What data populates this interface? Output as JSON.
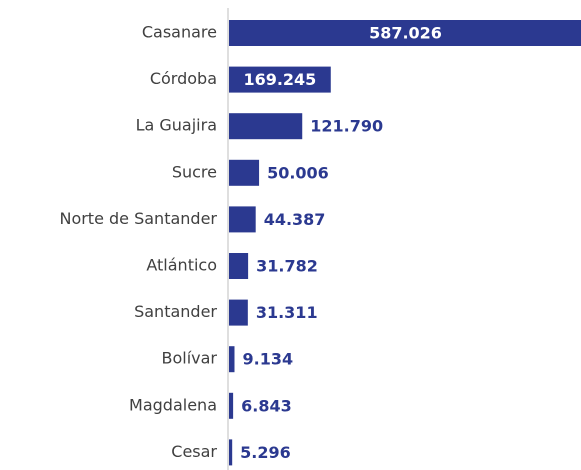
{
  "chart_data": {
    "type": "bar",
    "orientation": "horizontal",
    "categories": [
      "Casanare",
      "Córdoba",
      "La Guajira",
      "Sucre",
      "Norte de Santander",
      "Atlántico",
      "Santander",
      "Bolívar",
      "Magdalena",
      "Cesar"
    ],
    "values": [
      587026,
      169245,
      121790,
      50006,
      44387,
      31782,
      31311,
      9134,
      6843,
      5296
    ],
    "value_labels": [
      "587.026",
      "169.245",
      "121.790",
      "50.006",
      "44.387",
      "31.782",
      "31.311",
      "9.134",
      "6.843",
      "5.296"
    ],
    "color": "#2b3990"
  }
}
